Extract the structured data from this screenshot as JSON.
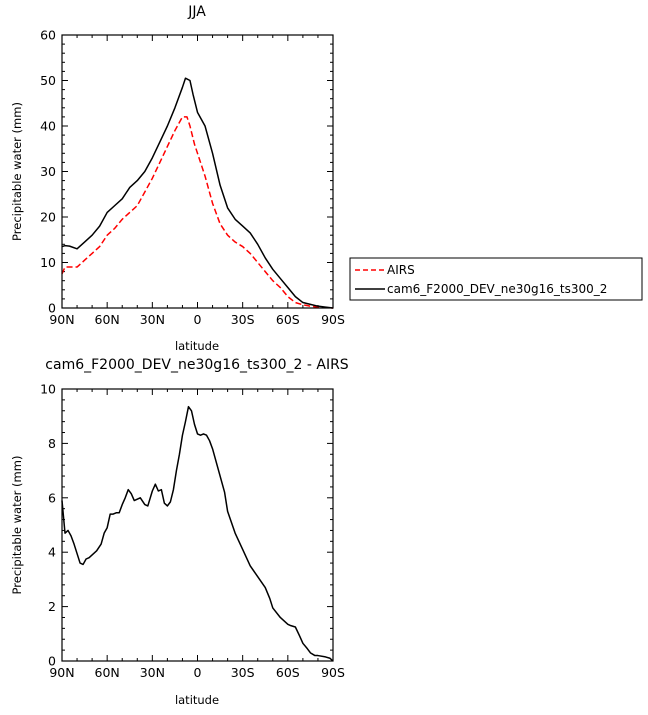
{
  "chart_data": [
    {
      "type": "line",
      "title": "JJA",
      "xlabel": "latitude",
      "ylabel": "Precipitable water (mm)",
      "xlim": [
        90,
        -90
      ],
      "ylim": [
        0,
        60
      ],
      "xticks": [
        90,
        60,
        30,
        0,
        -30,
        -60,
        -90
      ],
      "xticklabels": [
        "90N",
        "60N",
        "30N",
        "0",
        "30S",
        "60S",
        "90S"
      ],
      "yticks": [
        0,
        10,
        20,
        30,
        40,
        50,
        60
      ],
      "yticklabels": [
        "0",
        "10",
        "20",
        "30",
        "40",
        "50",
        "60"
      ],
      "grid": false,
      "legend_position": "right",
      "series": [
        {
          "name": "AIRS",
          "color": "#ff0000",
          "style": "dashed",
          "x": [
            90,
            88,
            85,
            80,
            75,
            70,
            65,
            60,
            55,
            50,
            45,
            40,
            35,
            30,
            25,
            20,
            15,
            10,
            7,
            5,
            2,
            0,
            -5,
            -10,
            -15,
            -20,
            -25,
            -30,
            -35,
            -40,
            -45,
            -50,
            -55,
            -60,
            -65,
            -70,
            -75,
            -80,
            -85,
            -90
          ],
          "y": [
            7.5,
            9,
            9,
            9,
            10.5,
            12,
            13.5,
            16,
            17.5,
            19.5,
            21,
            22.5,
            25.5,
            28.5,
            32,
            35.5,
            39,
            42,
            42,
            40,
            36,
            34,
            29,
            23,
            18.5,
            16,
            14.5,
            13.5,
            12,
            10,
            8,
            6,
            4.5,
            2.5,
            1.2,
            0.7,
            0.4,
            0.2,
            0.1,
            0
          ]
        },
        {
          "name": "cam6_F2000_DEV_ne30g16_ts300_2",
          "color": "#000000",
          "style": "solid",
          "x": [
            90,
            88,
            85,
            80,
            75,
            70,
            65,
            60,
            55,
            50,
            45,
            40,
            35,
            30,
            25,
            20,
            15,
            10,
            8,
            5,
            3,
            0,
            -5,
            -10,
            -15,
            -20,
            -25,
            -30,
            -35,
            -40,
            -45,
            -50,
            -55,
            -60,
            -65,
            -70,
            -75,
            -80,
            -85,
            -90
          ],
          "y": [
            13.5,
            13.7,
            13.6,
            13,
            14.5,
            16,
            18,
            21,
            22.5,
            24,
            26.5,
            28,
            30,
            33,
            36.5,
            40,
            44,
            48.5,
            50.5,
            50,
            47,
            43,
            40,
            34,
            27,
            22,
            19.5,
            18,
            16.5,
            14,
            11,
            8.5,
            6.5,
            4.5,
            2.5,
            1.2,
            0.8,
            0.4,
            0.2,
            0
          ]
        }
      ]
    },
    {
      "type": "line",
      "title": "cam6_F2000_DEV_ne30g16_ts300_2 - AIRS",
      "xlabel": "latitude",
      "ylabel": "Precipitable water (mm)",
      "xlim": [
        90,
        -90
      ],
      "ylim": [
        0,
        10
      ],
      "xticks": [
        90,
        60,
        30,
        0,
        -30,
        -60,
        -90
      ],
      "xticklabels": [
        "90N",
        "60N",
        "30N",
        "0",
        "30S",
        "60S",
        "90S"
      ],
      "yticks": [
        0,
        2,
        4,
        6,
        8,
        10
      ],
      "yticklabels": [
        "0",
        "2",
        "4",
        "6",
        "8",
        "10"
      ],
      "grid": false,
      "series": [
        {
          "color": "#000000",
          "style": "solid",
          "x": [
            90,
            88,
            86,
            84,
            82,
            80,
            78,
            76,
            74,
            72,
            70,
            67,
            64,
            62,
            60,
            58,
            56,
            54,
            52,
            50,
            48,
            46,
            44,
            42,
            40,
            38,
            35,
            33,
            30,
            28,
            26,
            24,
            22,
            20,
            18,
            16,
            14,
            12,
            10,
            8,
            6,
            4,
            2,
            0,
            -2,
            -4,
            -6,
            -8,
            -10,
            -12,
            -14,
            -16,
            -18,
            -20,
            -25,
            -30,
            -35,
            -40,
            -45,
            -48,
            -50,
            -55,
            -60,
            -62,
            -65,
            -68,
            -70,
            -73,
            -75,
            -78,
            -80,
            -85,
            -88,
            -90
          ],
          "y": [
            5.9,
            4.7,
            4.8,
            4.6,
            4.3,
            3.95,
            3.6,
            3.55,
            3.75,
            3.8,
            3.9,
            4.05,
            4.3,
            4.7,
            4.9,
            5.4,
            5.4,
            5.45,
            5.45,
            5.75,
            6.0,
            6.3,
            6.15,
            5.9,
            5.95,
            6.0,
            5.75,
            5.7,
            6.25,
            6.5,
            6.25,
            6.3,
            5.8,
            5.7,
            5.85,
            6.3,
            7.0,
            7.6,
            8.3,
            8.8,
            9.35,
            9.2,
            8.7,
            8.35,
            8.3,
            8.35,
            8.3,
            8.1,
            7.8,
            7.4,
            7.0,
            6.6,
            6.2,
            5.5,
            4.7,
            4.1,
            3.5,
            3.1,
            2.7,
            2.3,
            1.95,
            1.6,
            1.35,
            1.3,
            1.25,
            0.9,
            0.65,
            0.45,
            0.3,
            0.2,
            0.2,
            0.15,
            0.1,
            0
          ]
        }
      ]
    }
  ]
}
